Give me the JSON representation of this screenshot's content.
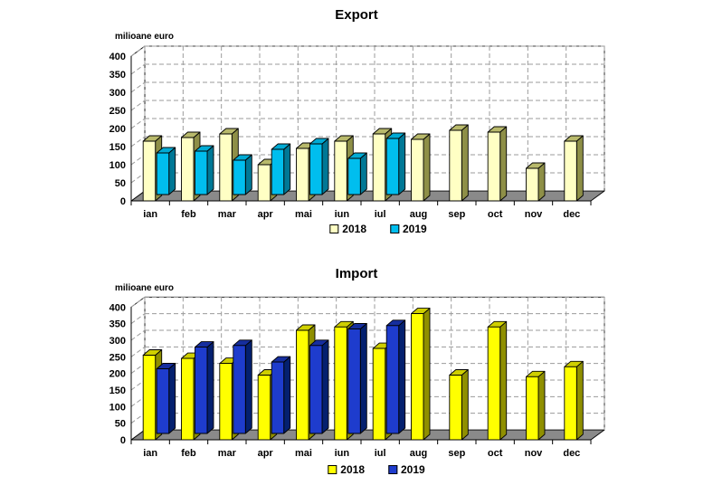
{
  "chart_data": [
    {
      "type": "bar",
      "style": "3d-column",
      "title": "Export",
      "ylabel": "milioane euro",
      "ylim": [
        0,
        400
      ],
      "ytick_step": 50,
      "grid": "dashed",
      "legend_position": "bottom-center",
      "categories": [
        "ian",
        "feb",
        "mar",
        "apr",
        "mai",
        "iun",
        "iul",
        "aug",
        "sep",
        "oct",
        "nov",
        "dec"
      ],
      "series": [
        {
          "name": "2018",
          "values": [
            165,
            175,
            185,
            100,
            145,
            165,
            185,
            170,
            195,
            190,
            90,
            165
          ],
          "color": {
            "front": "#FFFFC4",
            "top": "#B8B96B",
            "side": "#8E8F47"
          }
        },
        {
          "name": "2019",
          "values": [
            115,
            120,
            95,
            125,
            140,
            100,
            155,
            null,
            null,
            null,
            null,
            null
          ],
          "color": {
            "front": "#00BEEE",
            "top": "#00AAD4",
            "side": "#007896"
          }
        }
      ]
    },
    {
      "type": "bar",
      "style": "3d-column",
      "title": "Import",
      "ylabel": "milioane euro",
      "ylim": [
        0,
        400
      ],
      "ytick_step": 50,
      "grid": "dashed",
      "legend_position": "bottom-center",
      "categories": [
        "ian",
        "feb",
        "mar",
        "apr",
        "mai",
        "iun",
        "iul",
        "aug",
        "sep",
        "oct",
        "nov",
        "dec"
      ],
      "series": [
        {
          "name": "2018",
          "values": [
            255,
            245,
            230,
            195,
            330,
            340,
            275,
            380,
            195,
            340,
            190,
            220
          ],
          "color": {
            "front": "#FFFF00",
            "top": "#CFCF00",
            "side": "#8F8F00"
          }
        },
        {
          "name": "2019",
          "values": [
            195,
            260,
            265,
            215,
            265,
            315,
            325,
            null,
            null,
            null,
            null,
            null
          ],
          "color": {
            "front": "#1E3CCD",
            "top": "#162E9E",
            "side": "#04206F"
          }
        }
      ]
    }
  ],
  "style_colors": {
    "floor": "#8A8A8A",
    "gridline": "#9B9B9B",
    "wall": "#FFFFFF",
    "axis": "#000000"
  }
}
